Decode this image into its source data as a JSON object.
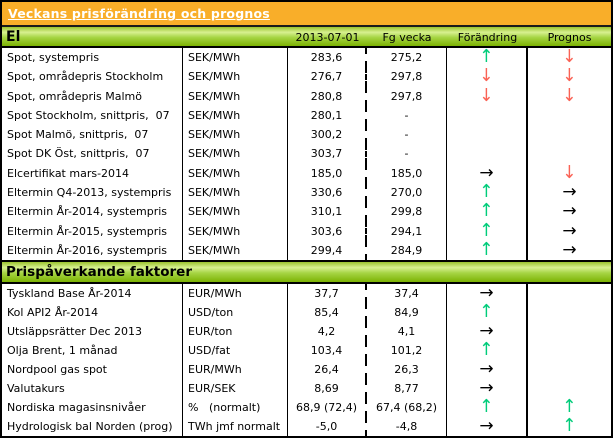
{
  "chart_data": {
    "type": "table",
    "title": "Veckans prisförändring och prognos",
    "columns": {
      "date": "2013-07-01",
      "prev_week": "Fg vecka",
      "change": "Förändring",
      "forecast": "Prognos"
    },
    "sections": [
      {
        "title": "El",
        "rows": [
          {
            "name": "Spot, systempris",
            "unit": "SEK/MWh",
            "current": "283,6",
            "prev": "275,2",
            "change": "up",
            "forecast": "down"
          },
          {
            "name": "Spot, områdepris Stockholm",
            "unit": "SEK/MWh",
            "current": "276,7",
            "prev": "297,8",
            "change": "down",
            "forecast": "down"
          },
          {
            "name": "Spot, områdepris Malmö",
            "unit": "SEK/MWh",
            "current": "280,8",
            "prev": "297,8",
            "change": "down",
            "forecast": "down"
          },
          {
            "name": "Spot Stockholm, snittpris,  07",
            "unit": "SEK/MWh",
            "current": "280,1",
            "prev": "-",
            "change": "none",
            "forecast": "none"
          },
          {
            "name": "Spot Malmö, snittpris,  07",
            "unit": "SEK/MWh",
            "current": "300,2",
            "prev": "-",
            "change": "none",
            "forecast": "none"
          },
          {
            "name": "Spot DK Öst, snittpris,  07",
            "unit": "SEK/MWh",
            "current": "303,7",
            "prev": "-",
            "change": "none",
            "forecast": "none"
          },
          {
            "name": "Elcertifikat mars-2014",
            "unit": "SEK/MWh",
            "current": "185,0",
            "prev": "185,0",
            "change": "right",
            "forecast": "down"
          },
          {
            "name": "Eltermin Q4-2013, systempris",
            "unit": "SEK/MWh",
            "current": "330,6",
            "prev": "270,0",
            "change": "up",
            "forecast": "right"
          },
          {
            "name": "Eltermin År-2014, systempris",
            "unit": "SEK/MWh",
            "current": "310,1",
            "prev": "299,8",
            "change": "up",
            "forecast": "right"
          },
          {
            "name": "Eltermin År-2015, systempris",
            "unit": "SEK/MWh",
            "current": "303,6",
            "prev": "294,1",
            "change": "up",
            "forecast": "right"
          },
          {
            "name": "Eltermin År-2016, systempris",
            "unit": "SEK/MWh",
            "current": "299,4",
            "prev": "284,9",
            "change": "up",
            "forecast": "right"
          }
        ]
      },
      {
        "title": "Prispåverkande faktorer",
        "rows": [
          {
            "name": "Tyskland Base År-2014",
            "unit": "EUR/MWh",
            "current": "37,7",
            "prev": "37,4",
            "change": "right",
            "forecast": "none"
          },
          {
            "name": "Kol API2 År-2014",
            "unit": "USD/ton",
            "current": "85,4",
            "prev": "84,9",
            "change": "up",
            "forecast": "none"
          },
          {
            "name": "Utsläppsrätter Dec 2013",
            "unit": "EUR/ton",
            "current": "4,2",
            "prev": "4,1",
            "change": "right",
            "forecast": "none"
          },
          {
            "name": "Olja Brent, 1 månad",
            "unit": "USD/fat",
            "current": "103,4",
            "prev": "101,2",
            "change": "up",
            "forecast": "none"
          },
          {
            "name": "Nordpool gas spot",
            "unit": "EUR/MWh",
            "current": "26,4",
            "prev": "26,3",
            "change": "right",
            "forecast": "none"
          },
          {
            "name": "Valutakurs",
            "unit": "EUR/SEK",
            "current": "8,69",
            "prev": "8,77",
            "change": "right",
            "forecast": "none"
          },
          {
            "name": "Nordiska magasinsnivåer",
            "unit": "%   (normalt)",
            "current": "68,9 (72,4)",
            "prev": "67,4 (68,2)",
            "change": "up",
            "forecast": "up"
          },
          {
            "name": "Hydrologisk bal Norden (prog)",
            "unit": "TWh jmf normalt",
            "current": "-5,0",
            "prev": "-4,8",
            "change": "right",
            "forecast": "up"
          }
        ]
      }
    ]
  },
  "colors": {
    "title_bar_orange": "#F9AE29",
    "section_header_green": "#A6D544",
    "arrow_up": "#00CC7A",
    "arrow_down": "#FA6255",
    "arrow_right": "#000000"
  },
  "arrow_glyphs": {
    "up": "↑",
    "down": "↓",
    "right": "→"
  }
}
